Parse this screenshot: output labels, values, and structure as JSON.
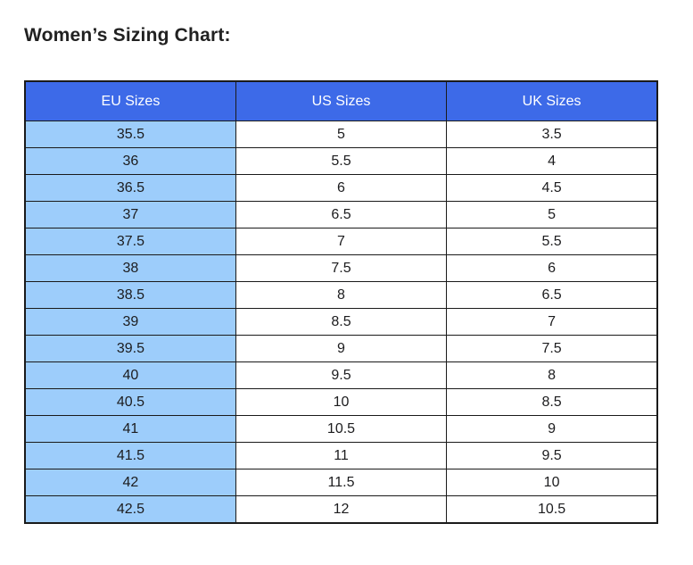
{
  "page": {
    "title": "Women’s Sizing Chart:"
  },
  "chart_data": {
    "type": "table",
    "title": "Women’s Sizing Chart:",
    "columns": [
      "EU Sizes",
      "US Sizes",
      "UK Sizes"
    ],
    "rows": [
      [
        "35.5",
        "5",
        "3.5"
      ],
      [
        "36",
        "5.5",
        "4"
      ],
      [
        "36.5",
        "6",
        "4.5"
      ],
      [
        "37",
        "6.5",
        "5"
      ],
      [
        "37.5",
        "7",
        "5.5"
      ],
      [
        "38",
        "7.5",
        "6"
      ],
      [
        "38.5",
        "8",
        "6.5"
      ],
      [
        "39",
        "8.5",
        "7"
      ],
      [
        "39.5",
        "9",
        "7.5"
      ],
      [
        "40",
        "9.5",
        "8"
      ],
      [
        "40.5",
        "10",
        "8.5"
      ],
      [
        "41",
        "10.5",
        "9"
      ],
      [
        "41.5",
        "11",
        "9.5"
      ],
      [
        "42",
        "11.5",
        "10"
      ],
      [
        "42.5",
        "12",
        "10.5"
      ]
    ],
    "layout": {
      "grid": true,
      "header_position": "top",
      "highlighted_column": "EU Sizes"
    }
  },
  "colors": {
    "header_bg": "#3d6ae8",
    "header_text": "#ffffff",
    "eu_column_bg": "#9dcdfb",
    "cell_bg": "#ffffff",
    "cell_text": "#1c1c1e",
    "border": "#1a1a1a",
    "title_text": "#212121",
    "page_bg": "#ffffff"
  }
}
